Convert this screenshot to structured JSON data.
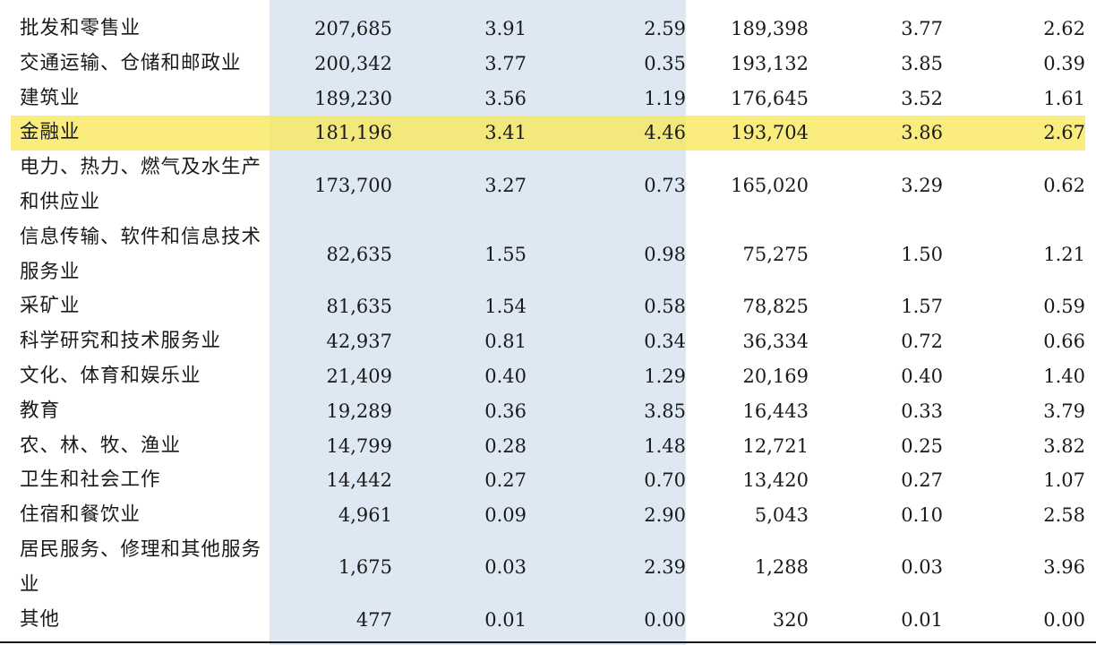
{
  "table": {
    "highlight_color": "#f8e85a",
    "shade_color": "#dde8f3",
    "rows": [
      {
        "name": "批发和零售业",
        "c1": "207,685",
        "c2": "3.91",
        "c3": "2.59",
        "c4": "189,398",
        "c5": "3.77",
        "c6": "2.62",
        "highlight": false,
        "tall": false
      },
      {
        "name": "交通运输、仓储和邮政业",
        "c1": "200,342",
        "c2": "3.77",
        "c3": "0.35",
        "c4": "193,132",
        "c5": "3.85",
        "c6": "0.39",
        "highlight": false,
        "tall": false
      },
      {
        "name": "建筑业",
        "c1": "189,230",
        "c2": "3.56",
        "c3": "1.19",
        "c4": "176,645",
        "c5": "3.52",
        "c6": "1.61",
        "highlight": false,
        "tall": false
      },
      {
        "name": "金融业",
        "c1": "181,196",
        "c2": "3.41",
        "c3": "4.46",
        "c4": "193,704",
        "c5": "3.86",
        "c6": "2.67",
        "highlight": true,
        "tall": false
      },
      {
        "name": "电力、热力、燃气及水生产和供应业",
        "c1": "173,700",
        "c2": "3.27",
        "c3": "0.73",
        "c4": "165,020",
        "c5": "3.29",
        "c6": "0.62",
        "highlight": false,
        "tall": true
      },
      {
        "name": "信息传输、软件和信息技术服务业",
        "c1": "82,635",
        "c2": "1.55",
        "c3": "0.98",
        "c4": "75,275",
        "c5": "1.50",
        "c6": "1.21",
        "highlight": false,
        "tall": true
      },
      {
        "name": "采矿业",
        "c1": "81,635",
        "c2": "1.54",
        "c3": "0.58",
        "c4": "78,825",
        "c5": "1.57",
        "c6": "0.59",
        "highlight": false,
        "tall": false
      },
      {
        "name": "科学研究和技术服务业",
        "c1": "42,937",
        "c2": "0.81",
        "c3": "0.34",
        "c4": "36,334",
        "c5": "0.72",
        "c6": "0.66",
        "highlight": false,
        "tall": false
      },
      {
        "name": "文化、体育和娱乐业",
        "c1": "21,409",
        "c2": "0.40",
        "c3": "1.29",
        "c4": "20,169",
        "c5": "0.40",
        "c6": "1.40",
        "highlight": false,
        "tall": false
      },
      {
        "name": "教育",
        "c1": "19,289",
        "c2": "0.36",
        "c3": "3.85",
        "c4": "16,443",
        "c5": "0.33",
        "c6": "3.79",
        "highlight": false,
        "tall": false
      },
      {
        "name": "农、林、牧、渔业",
        "c1": "14,799",
        "c2": "0.28",
        "c3": "1.48",
        "c4": "12,721",
        "c5": "0.25",
        "c6": "3.82",
        "highlight": false,
        "tall": false
      },
      {
        "name": "卫生和社会工作",
        "c1": "14,442",
        "c2": "0.27",
        "c3": "0.70",
        "c4": "13,420",
        "c5": "0.27",
        "c6": "1.07",
        "highlight": false,
        "tall": false
      },
      {
        "name": "住宿和餐饮业",
        "c1": "4,961",
        "c2": "0.09",
        "c3": "2.90",
        "c4": "5,043",
        "c5": "0.10",
        "c6": "2.58",
        "highlight": false,
        "tall": false
      },
      {
        "name": "居民服务、修理和其他服务业",
        "c1": "1,675",
        "c2": "0.03",
        "c3": "2.39",
        "c4": "1,288",
        "c5": "0.03",
        "c6": "3.96",
        "highlight": false,
        "tall": true
      },
      {
        "name": "其他",
        "c1": "477",
        "c2": "0.01",
        "c3": "0.00",
        "c4": "320",
        "c5": "0.01",
        "c6": "0.00",
        "highlight": false,
        "tall": false
      }
    ]
  }
}
